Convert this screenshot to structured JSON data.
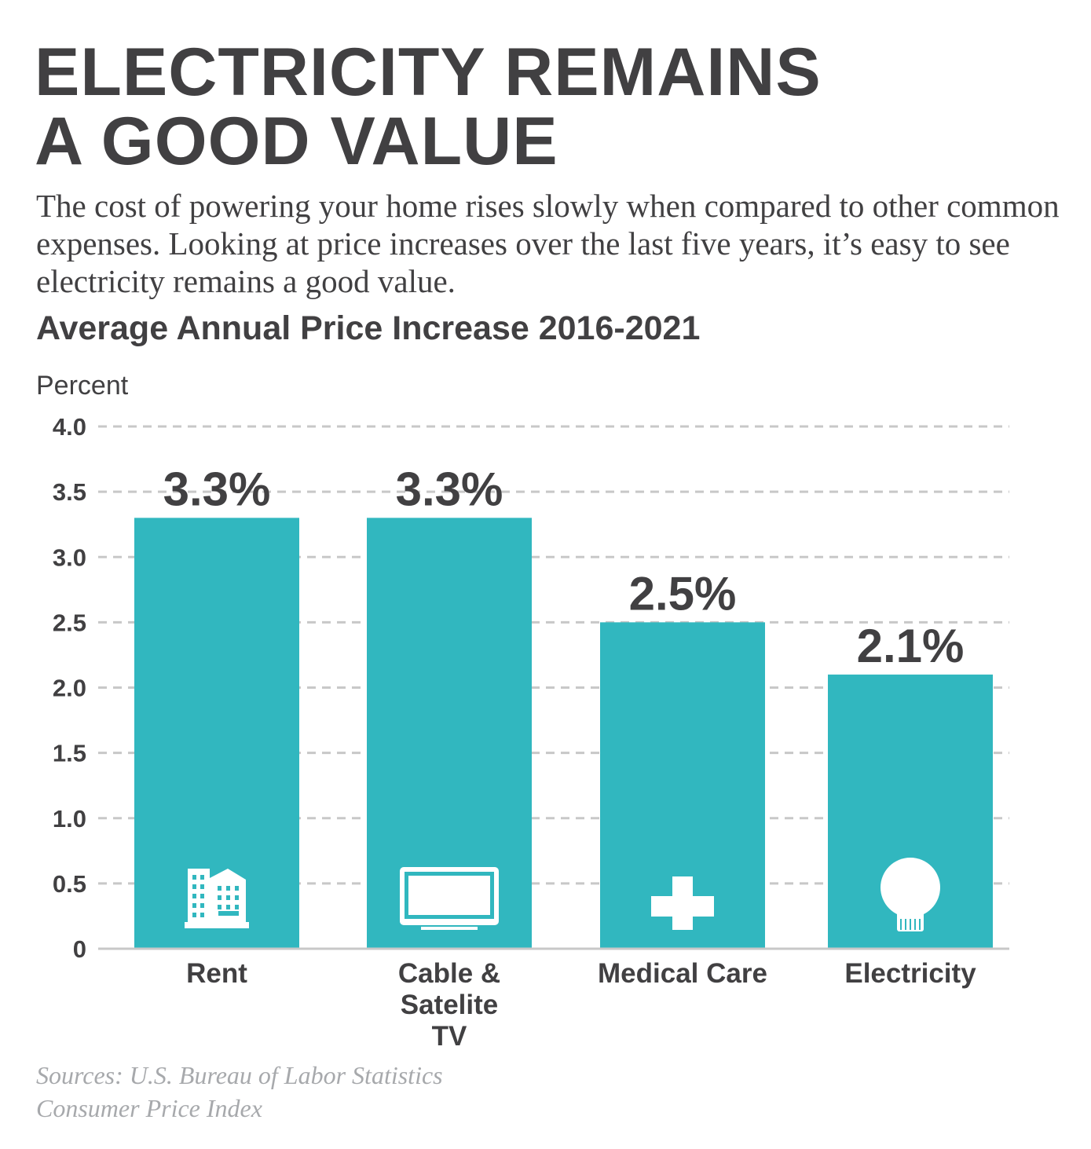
{
  "title_lines": [
    "ELECTRICITY REMAINS",
    "A GOOD VALUE"
  ],
  "intro": "The cost of powering your home rises slowly when compared to other common expenses. Looking at price increases over the last five years, it’s easy to see electricity remains a good value.",
  "source_lines": [
    "Sources: U.S. Bureau of Labor Statistics",
    "Consumer Price Index"
  ],
  "colors": {
    "bar": "#31b7bf",
    "text": "#414042",
    "grid": "#c8c8c8",
    "axis": "#c8c8c8",
    "source": "#a7a9ac"
  },
  "chart_data": {
    "type": "bar",
    "title": "Average Annual Price Increase 2016-2021",
    "ylabel": "Percent",
    "xlabel": "",
    "categories": [
      [
        "Rent"
      ],
      [
        "Cable &",
        "Satelite",
        "TV"
      ],
      [
        "Medical Care"
      ],
      [
        "Electricity"
      ]
    ],
    "values": [
      3.3,
      3.3,
      2.5,
      2.1
    ],
    "value_labels": [
      "3.3%",
      "3.3%",
      "2.5%",
      "2.1%"
    ],
    "icons": [
      "building-icon",
      "tv-icon",
      "medical-cross-icon",
      "light-bulb-icon"
    ],
    "ylim": [
      0,
      4.0
    ],
    "yticks": [
      0,
      0.5,
      1.0,
      1.5,
      2.0,
      2.5,
      3.0,
      3.5,
      4.0
    ],
    "ytick_labels": [
      "0",
      "0.5",
      "1.0",
      "1.5",
      "2.0",
      "2.5",
      "3.0",
      "3.5",
      "4.0"
    ],
    "grid": true,
    "grid_style": "dashed"
  }
}
